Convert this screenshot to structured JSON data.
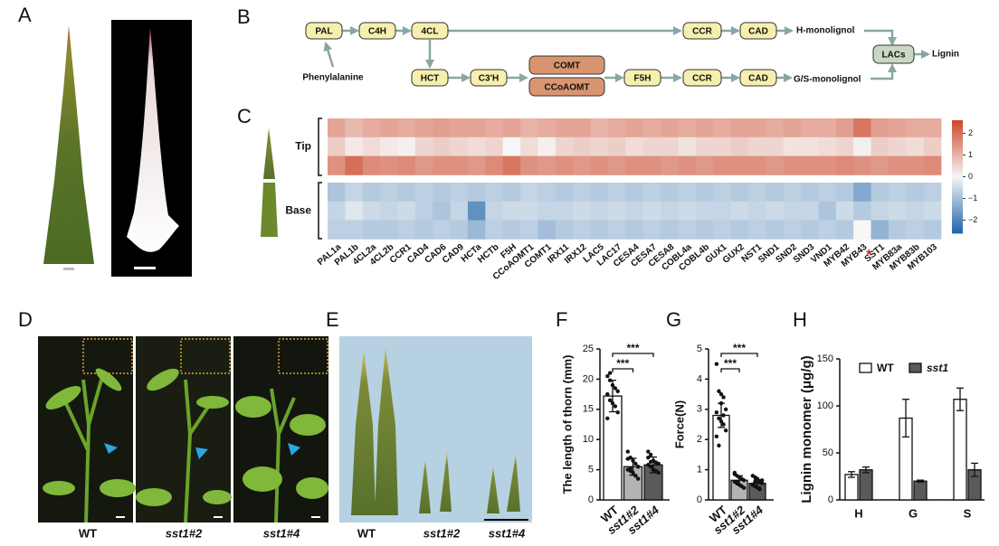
{
  "panel_labels": [
    "A",
    "B",
    "C",
    "D",
    "E",
    "F",
    "G",
    "H"
  ],
  "pathway": {
    "nodes": [
      "PAL",
      "C4H",
      "4CL",
      "CCR",
      "CAD",
      "HCT",
      "C3'H",
      "COMT",
      "CCoAOMT",
      "F5H",
      "CCR",
      "CAD",
      "LACs"
    ],
    "substrate": "Phenylalanine",
    "products": [
      "H-monolignol",
      "G/S-monolignol",
      "Lignin"
    ]
  },
  "photos": {
    "D_labels": [
      "WT",
      "sst1#2",
      "sst1#4"
    ],
    "E_labels": [
      "WT",
      "sst1#2",
      "sst1#4"
    ]
  },
  "chart_data": [
    {
      "type": "heatmap",
      "categories": [
        "PAL1a",
        "PAL1b",
        "4CL2a",
        "4CL2b",
        "CCR1",
        "CAD4",
        "CAD6",
        "CAD9",
        "HCTa",
        "HCTb",
        "F5H",
        "CCoAOMT1",
        "COMT1",
        "IRX11",
        "IRX12",
        "LAC5",
        "LAC17",
        "CESA4",
        "CESA7",
        "CESA8",
        "COBL4a",
        "COBL4b",
        "GUX1",
        "GUX2",
        "NST1",
        "SND1",
        "SND2",
        "SND3",
        "VND1",
        "MYB42",
        "MYB43",
        "SST1",
        "MYB83a",
        "MYB83b",
        "MYB103"
      ],
      "annotations": [
        {
          "text": "*",
          "category": 31,
          "color": "#e02020"
        }
      ],
      "series": [
        {
          "name": "Tip",
          "values": [
            [
              1.2,
              0.9,
              1.1,
              1.2,
              1.1,
              1.2,
              1.3,
              1.2,
              1.2,
              1.1,
              1.2,
              1.0,
              1.1,
              1.2,
              1.2,
              1.0,
              1.1,
              1.2,
              1.1,
              1.2,
              1.1,
              1.2,
              1.1,
              1.2,
              1.2,
              1.1,
              1.2,
              1.1,
              1.1,
              1.3,
              1.9,
              1.3,
              1.2,
              1.1,
              1.1
            ],
            [
              0.6,
              0.2,
              0.4,
              0.2,
              0.1,
              0.5,
              0.6,
              0.5,
              0.4,
              0.5,
              0.0,
              0.4,
              0.1,
              0.5,
              0.6,
              0.5,
              0.6,
              0.4,
              0.5,
              0.5,
              0.3,
              0.5,
              0.5,
              0.6,
              0.5,
              0.5,
              0.3,
              0.3,
              0.4,
              0.5,
              0.1,
              0.6,
              0.5,
              0.4,
              0.6
            ],
            [
              1.5,
              2.0,
              1.6,
              1.5,
              1.6,
              1.4,
              1.5,
              1.5,
              1.4,
              1.6,
              1.9,
              1.5,
              1.4,
              1.5,
              1.4,
              1.5,
              1.4,
              1.5,
              1.5,
              1.4,
              1.5,
              1.4,
              1.5,
              1.5,
              1.5,
              1.4,
              1.5,
              1.5,
              1.5,
              1.6,
              1.5,
              1.4,
              1.5,
              1.5,
              1.6
            ]
          ]
        },
        {
          "name": "Base",
          "values": [
            [
              -0.9,
              -0.6,
              -0.8,
              -0.7,
              -0.8,
              -0.7,
              -0.8,
              -0.7,
              -0.8,
              -0.7,
              -0.8,
              -0.6,
              -0.7,
              -0.8,
              -0.7,
              -0.8,
              -0.7,
              -0.8,
              -0.7,
              -0.8,
              -0.7,
              -0.8,
              -0.7,
              -0.8,
              -0.7,
              -0.8,
              -0.7,
              -0.8,
              -0.7,
              -0.8,
              -1.4,
              -0.8,
              -0.7,
              -0.8,
              -0.7
            ],
            [
              -0.6,
              -0.3,
              -0.5,
              -0.6,
              -0.5,
              -0.7,
              -0.9,
              -0.6,
              -1.8,
              -0.6,
              -0.5,
              -0.5,
              -0.6,
              -0.6,
              -0.5,
              -0.6,
              -0.5,
              -0.6,
              -0.5,
              -0.6,
              -0.5,
              -0.6,
              -0.6,
              -0.5,
              -0.6,
              -0.5,
              -0.6,
              -0.6,
              -0.9,
              -0.5,
              -0.8,
              -0.6,
              -0.5,
              -0.6,
              -0.5
            ],
            [
              -0.7,
              -0.7,
              -0.8,
              -0.8,
              -0.7,
              -0.8,
              -0.7,
              -0.8,
              -1.1,
              -0.7,
              -0.8,
              -0.7,
              -1.0,
              -0.8,
              -0.7,
              -0.8,
              -0.7,
              -0.8,
              -0.7,
              -0.8,
              -0.7,
              -0.8,
              -0.7,
              -0.8,
              -0.7,
              -0.8,
              -0.7,
              -0.8,
              -0.7,
              -0.8,
              0.0,
              -1.2,
              -0.8,
              -0.7,
              -0.8
            ]
          ]
        }
      ],
      "zlim": [
        -2.6,
        2.6
      ],
      "zticks": [
        2,
        1,
        0,
        {
          "value": -1,
          "label": "−1"
        },
        {
          "value": -2,
          "label": "−2"
        }
      ]
    },
    {
      "type": "bar",
      "ylabel": "The length of thorn (mm)",
      "categories": [
        "WT",
        "sst1#2",
        "sst1#4"
      ],
      "values": [
        17.2,
        5.5,
        5.8
      ],
      "errors": [
        2.6,
        1.4,
        1.3
      ],
      "colors": [
        "#ffffff",
        "#b3b3b3",
        "#5a5a5a"
      ],
      "points": [
        [
          20.5,
          19.8,
          19,
          18.5,
          18,
          17.5,
          16.5,
          16,
          15.5,
          14.5,
          13.5,
          21
        ],
        [
          8,
          7,
          6.5,
          6,
          5.5,
          5,
          4.8,
          4.5,
          4,
          3.5,
          6.8,
          5.2
        ],
        [
          8,
          7.5,
          6.5,
          6.2,
          6,
          5.8,
          5.5,
          5,
          4.8,
          4.5,
          7,
          6.3
        ]
      ],
      "significance": [
        "***",
        "***"
      ],
      "ylim": [
        0,
        25
      ],
      "yticks": [
        0,
        5,
        10,
        15,
        20,
        25
      ]
    },
    {
      "type": "bar",
      "ylabel": "Force(N)",
      "categories": [
        "WT",
        "sst1#2",
        "sst1#4"
      ],
      "values": [
        2.8,
        0.65,
        0.55
      ],
      "errors": [
        0.4,
        0.15,
        0.12
      ],
      "colors": [
        "#ffffff",
        "#b3b3b3",
        "#5a5a5a"
      ],
      "points": [
        [
          4.5,
          3.6,
          3.5,
          3.4,
          3.0,
          2.9,
          2.7,
          2.6,
          2.5,
          2.3,
          2.1,
          1.8,
          3.2,
          2.8
        ],
        [
          0.9,
          0.8,
          0.75,
          0.7,
          0.65,
          0.6,
          0.55,
          0.5,
          0.45,
          0.4,
          0.85,
          0.6
        ],
        [
          0.8,
          0.75,
          0.7,
          0.6,
          0.55,
          0.5,
          0.45,
          0.4,
          0.35,
          0.65,
          0.5,
          0.6
        ]
      ],
      "significance": [
        "***",
        "***"
      ],
      "ylim": [
        0,
        5
      ],
      "yticks": [
        0,
        1,
        2,
        3,
        4,
        5
      ]
    },
    {
      "type": "grouped_bar",
      "ylabel": "Lignin monomer (μg/g)",
      "categories": [
        "H",
        "G",
        "S"
      ],
      "series": [
        {
          "name": "WT",
          "color": "#ffffff",
          "values": [
            27,
            87,
            107
          ],
          "errors": [
            3,
            20,
            12
          ]
        },
        {
          "name": "sst1",
          "color": "#5a5a5a",
          "values": [
            32,
            20,
            32
          ],
          "errors": [
            3,
            1,
            7
          ]
        }
      ],
      "ylim": [
        0,
        150
      ],
      "yticks": [
        0,
        50,
        100,
        150
      ]
    }
  ]
}
